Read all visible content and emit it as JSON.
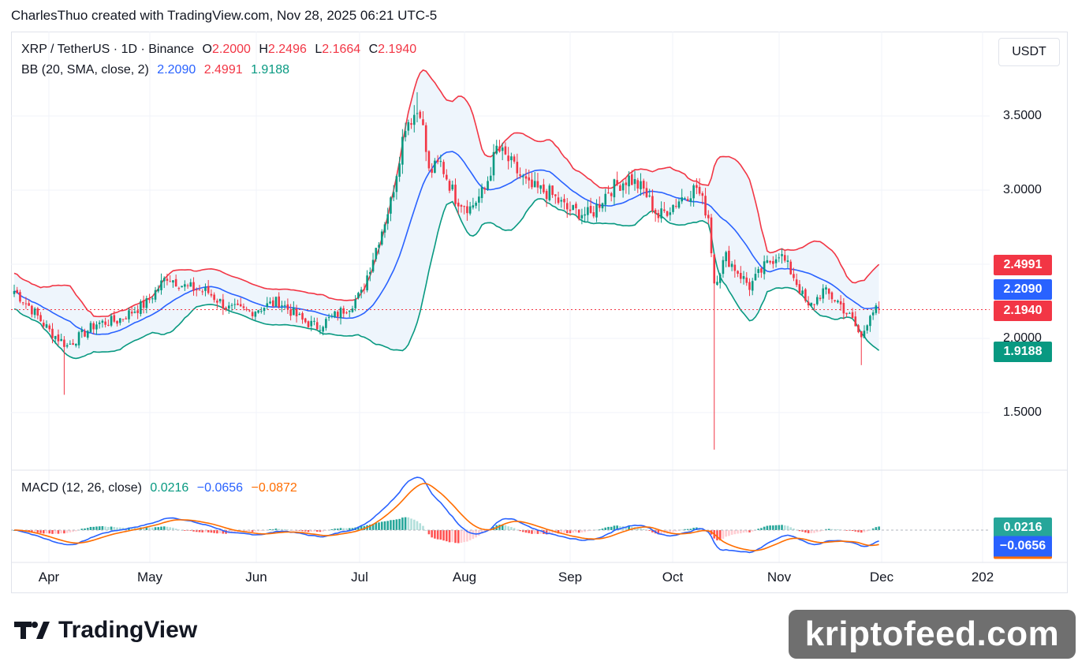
{
  "header": {
    "caption": "CharlesThuo created with TradingView.com, Nov 28, 2025 06:21 UTC-5"
  },
  "legend": {
    "symbol": "XRP / TetherUS · 1D · Binance",
    "o_label": "O",
    "o_value": "2.2000",
    "h_label": "H",
    "h_value": "2.2496",
    "l_label": "L",
    "l_value": "2.1664",
    "c_label": "C",
    "c_value": "2.1940",
    "bb_label": "BB (20, SMA, close, 2)",
    "bb_basis": "2.2090",
    "bb_upper": "2.4991",
    "bb_lower": "1.9188",
    "macd_label": "MACD (12, 26, close)",
    "macd_hist": "0.0216",
    "macd_line": "−0.0656",
    "macd_signal": "−0.0872"
  },
  "price_axis": {
    "unit": "USDT",
    "ticks": [
      "3.5000",
      "3.0000",
      "2.0000",
      "1.5000"
    ]
  },
  "badges": {
    "upper": "2.4991",
    "basis": "2.2090",
    "close": "2.1940",
    "lower": "1.9188",
    "macd_hist": "0.0216",
    "macd_line": "−0.0656"
  },
  "time_axis": {
    "labels": [
      "Apr",
      "May",
      "Jun",
      "Jul",
      "Aug",
      "Sep",
      "Oct",
      "Nov",
      "Dec",
      "202"
    ]
  },
  "colors": {
    "up": "#089981",
    "down": "#f23645",
    "bb_upper": "#f23645",
    "bb_lower": "#089981",
    "bb_basis": "#2962ff",
    "bb_fill": "#eef5fc",
    "macd_line": "#2962ff",
    "signal_line": "#ff6d00"
  },
  "branding": {
    "logo_text": "TradingView",
    "watermark": "kriptofeed.com"
  },
  "chart_data": {
    "type": "candlestick",
    "title": "XRP / TetherUS · 1D · Binance",
    "ylim": [
      1.0,
      4.1
    ],
    "x_labels": [
      "Apr",
      "May",
      "Jun",
      "Jul",
      "Aug",
      "Sep",
      "Oct",
      "Nov",
      "Dec"
    ],
    "anchors": [
      {
        "d": 0,
        "p": 2.32
      },
      {
        "d": 5,
        "p": 2.22
      },
      {
        "d": 12,
        "p": 2.05
      },
      {
        "d": 18,
        "p": 1.95
      },
      {
        "d": 28,
        "p": 2.1
      },
      {
        "d": 35,
        "p": 2.12
      },
      {
        "d": 45,
        "p": 2.24
      },
      {
        "d": 52,
        "p": 2.42
      },
      {
        "d": 58,
        "p": 2.35
      },
      {
        "d": 66,
        "p": 2.31
      },
      {
        "d": 73,
        "p": 2.2
      },
      {
        "d": 80,
        "p": 2.18
      },
      {
        "d": 90,
        "p": 2.25
      },
      {
        "d": 98,
        "p": 2.12
      },
      {
        "d": 103,
        "p": 2.08
      },
      {
        "d": 108,
        "p": 2.14
      },
      {
        "d": 114,
        "p": 2.22
      },
      {
        "d": 118,
        "p": 2.3
      },
      {
        "d": 122,
        "p": 2.55
      },
      {
        "d": 128,
        "p": 2.92
      },
      {
        "d": 133,
        "p": 3.45
      },
      {
        "d": 138,
        "p": 3.55
      },
      {
        "d": 141,
        "p": 3.12
      },
      {
        "d": 145,
        "p": 3.18
      },
      {
        "d": 150,
        "p": 2.95
      },
      {
        "d": 155,
        "p": 2.88
      },
      {
        "d": 160,
        "p": 3.0
      },
      {
        "d": 164,
        "p": 3.28
      },
      {
        "d": 168,
        "p": 3.2
      },
      {
        "d": 175,
        "p": 3.02
      },
      {
        "d": 182,
        "p": 2.98
      },
      {
        "d": 188,
        "p": 2.87
      },
      {
        "d": 196,
        "p": 2.83
      },
      {
        "d": 202,
        "p": 3.0
      },
      {
        "d": 209,
        "p": 3.08
      },
      {
        "d": 214,
        "p": 3.0
      },
      {
        "d": 219,
        "p": 2.82
      },
      {
        "d": 227,
        "p": 2.95
      },
      {
        "d": 232,
        "p": 3.02
      },
      {
        "d": 236,
        "p": 2.82
      },
      {
        "d": 238,
        "p": 2.38
      },
      {
        "d": 242,
        "p": 2.55
      },
      {
        "d": 250,
        "p": 2.35
      },
      {
        "d": 255,
        "p": 2.48
      },
      {
        "d": 260,
        "p": 2.58
      },
      {
        "d": 265,
        "p": 2.42
      },
      {
        "d": 270,
        "p": 2.2
      },
      {
        "d": 275,
        "p": 2.32
      },
      {
        "d": 280,
        "p": 2.25
      },
      {
        "d": 285,
        "p": 2.12
      },
      {
        "d": 288,
        "p": 2.0
      },
      {
        "d": 291,
        "p": 2.18
      },
      {
        "d": 294,
        "p": 2.194
      }
    ],
    "wick_overrides": [
      {
        "d": 238,
        "low": 1.25
      },
      {
        "d": 17,
        "low": 1.62
      },
      {
        "d": 137,
        "high": 3.66
      },
      {
        "d": 288,
        "low": 1.82
      }
    ],
    "last": {
      "open": 2.2,
      "high": 2.2496,
      "low": 2.1664,
      "close": 2.194
    },
    "bollinger": {
      "period": 20,
      "mult": 2,
      "basis": 2.209,
      "upper": 2.4991,
      "lower": 1.9188
    },
    "macd": {
      "fast": 12,
      "slow": 26,
      "histogram": 0.0216,
      "macd": -0.0656,
      "signal": -0.0872
    }
  }
}
